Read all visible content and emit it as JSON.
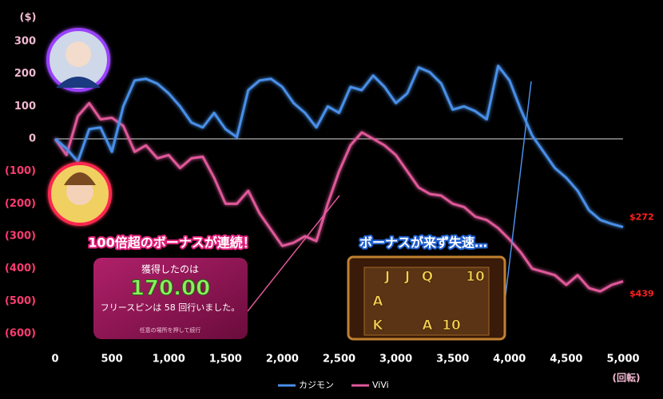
{
  "chart_data": {
    "type": "line",
    "y_unit": "($)",
    "x_unit": "(回転)",
    "x": [
      0,
      100,
      200,
      300,
      400,
      500,
      600,
      700,
      800,
      900,
      1000,
      1100,
      1200,
      1300,
      1400,
      1500,
      1600,
      1700,
      1800,
      1900,
      2000,
      2100,
      2200,
      2300,
      2400,
      2500,
      2600,
      2700,
      2800,
      2900,
      3000,
      3100,
      3200,
      3300,
      3400,
      3500,
      3600,
      3700,
      3800,
      3900,
      4000,
      4100,
      4200,
      4300,
      4400,
      4500,
      4600,
      4700,
      4800,
      4900,
      5000
    ],
    "series": [
      {
        "name": "カジモン",
        "color": "#4a8fe8",
        "values": [
          0,
          -30,
          -70,
          30,
          35,
          -40,
          100,
          180,
          185,
          170,
          140,
          100,
          50,
          35,
          80,
          30,
          5,
          150,
          180,
          185,
          160,
          110,
          80,
          35,
          100,
          80,
          160,
          150,
          195,
          160,
          110,
          140,
          220,
          205,
          170,
          90,
          100,
          85,
          60,
          225,
          180,
          90,
          10,
          -40,
          -90,
          -120,
          -160,
          -220,
          -250,
          -262,
          -272
        ]
      },
      {
        "name": "ViVi",
        "color": "#e0589a",
        "values": [
          0,
          -50,
          70,
          110,
          60,
          65,
          40,
          -40,
          -20,
          -60,
          -50,
          -90,
          -60,
          -55,
          -120,
          -200,
          -200,
          -160,
          -230,
          -280,
          -330,
          -320,
          -300,
          -315,
          -200,
          -100,
          -20,
          20,
          0,
          -20,
          -50,
          -100,
          -150,
          -170,
          -175,
          -200,
          -210,
          -240,
          -250,
          -275,
          -310,
          -350,
          -400,
          -410,
          -420,
          -450,
          -420,
          -460,
          -470,
          -450,
          -439
        ]
      }
    ],
    "end_labels": [
      "$272",
      "$439"
    ],
    "xlim": [
      0,
      5000
    ],
    "ylim": [
      -600,
      300
    ],
    "xticks": [
      0,
      500,
      {
        "value": 1000,
        "label": "1,000"
      },
      {
        "value": 1500,
        "label": "1,500"
      },
      {
        "value": 2000,
        "label": "2,000"
      },
      {
        "value": 2500,
        "label": "2,500"
      },
      {
        "value": 3000,
        "label": "3,000"
      },
      {
        "value": 3500,
        "label": "3,500"
      },
      {
        "value": 4000,
        "label": "4,000"
      },
      {
        "value": 4500,
        "label": "4,500"
      },
      {
        "value": 5000,
        "label": "5,000"
      }
    ],
    "yticks": [
      300,
      200,
      100,
      0,
      {
        "value": -100,
        "label": "(100)"
      },
      {
        "value": -200,
        "label": "(200)"
      },
      {
        "value": -300,
        "label": "(300)"
      },
      {
        "value": -400,
        "label": "(400)"
      },
      {
        "value": -500,
        "label": "(500)"
      },
      {
        "value": -600,
        "label": "(600)"
      }
    ],
    "annotations": [
      {
        "title": "100倍超のボーナスが連続！",
        "lines": [
          "獲得したのは",
          "170.00",
          "フリースピンは 58 回行いました。",
          "任意の場所を押して続行"
        ]
      },
      {
        "title": "ボーナスが来ず失速…",
        "symbols": [
          "J",
          "J",
          "Q",
          "10",
          "A",
          "K",
          "A",
          "10"
        ]
      }
    ]
  }
}
